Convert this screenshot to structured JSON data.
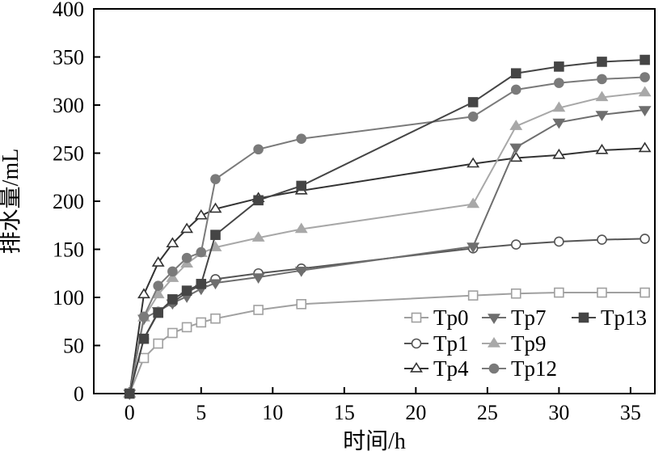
{
  "chart_data": {
    "type": "line",
    "xlabel": "时间/h",
    "ylabel": "排水量/mL",
    "xlim": [
      -2.5,
      36.7
    ],
    "ylim": [
      0,
      400
    ],
    "xticks": [
      "0",
      "5",
      "10",
      "15",
      "20",
      "25",
      "30",
      "35"
    ],
    "yticks": [
      "0",
      "50",
      "100",
      "150",
      "200",
      "250",
      "300",
      "350",
      "400"
    ],
    "grid": false,
    "legend_position": "bottom-right",
    "series": [
      {
        "name": "Tp0",
        "marker": "square-open",
        "color": "#a0a0a0",
        "x": [
          0,
          1,
          2,
          3,
          4,
          5,
          6,
          9,
          12,
          24,
          27,
          30,
          33,
          36
        ],
        "y": [
          0,
          37,
          52,
          63,
          69,
          74,
          78,
          87,
          93,
          102,
          104,
          105,
          105,
          105
        ]
      },
      {
        "name": "Tp1",
        "marker": "circle-open",
        "color": "#555555",
        "x": [
          0,
          1,
          2,
          3,
          4,
          5,
          6,
          9,
          12,
          24,
          27,
          30,
          33,
          36
        ],
        "y": [
          0,
          57,
          85,
          95,
          105,
          113,
          119,
          125,
          130,
          151,
          155,
          158,
          160,
          161
        ]
      },
      {
        "name": "Tp4",
        "marker": "triangle-open",
        "color": "#333333",
        "x": [
          0,
          1,
          2,
          3,
          4,
          5,
          6,
          9,
          12,
          24,
          27,
          30,
          33,
          36
        ],
        "y": [
          0,
          103,
          136,
          156,
          171,
          185,
          192,
          203,
          211,
          239,
          245,
          248,
          253,
          255
        ]
      },
      {
        "name": "Tp7",
        "marker": "triangle-down-filled",
        "color": "#6e6e6e",
        "x": [
          0,
          1,
          2,
          3,
          4,
          5,
          6,
          9,
          12,
          24,
          27,
          30,
          33,
          36
        ],
        "y": [
          0,
          78,
          86,
          94,
          101,
          109,
          115,
          121,
          128,
          153,
          256,
          282,
          290,
          295
        ]
      },
      {
        "name": "Tp9",
        "marker": "triangle-filled",
        "color": "#a8a8a8",
        "x": [
          0,
          1,
          2,
          3,
          4,
          5,
          6,
          9,
          12,
          24,
          27,
          30,
          33,
          36
        ],
        "y": [
          0,
          79,
          103,
          120,
          135,
          146,
          152,
          162,
          171,
          197,
          278,
          297,
          308,
          313
        ]
      },
      {
        "name": "Tp12",
        "marker": "circle-filled",
        "color": "#7a7a7a",
        "x": [
          0,
          1,
          2,
          3,
          4,
          5,
          6,
          9,
          12,
          24,
          27,
          30,
          33,
          36
        ],
        "y": [
          0,
          80,
          112,
          127,
          141,
          147,
          223,
          254,
          265,
          288,
          316,
          323,
          327,
          329
        ]
      },
      {
        "name": "Tp13",
        "marker": "square-filled",
        "color": "#454545",
        "x": [
          0,
          1,
          2,
          3,
          4,
          5,
          6,
          9,
          12,
          24,
          27,
          30,
          33,
          36
        ],
        "y": [
          0,
          57,
          84,
          98,
          107,
          114,
          165,
          201,
          216,
          303,
          333,
          340,
          345,
          347
        ]
      }
    ]
  }
}
